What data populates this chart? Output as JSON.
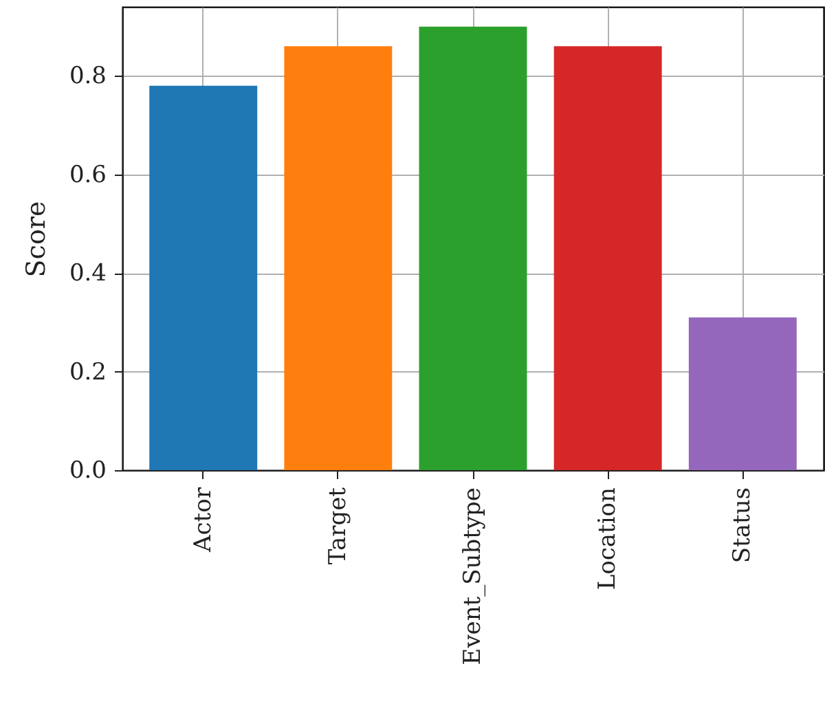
{
  "chart_data": {
    "type": "bar",
    "ylabel": "Score",
    "categories": [
      "Actor",
      "Target",
      "Event_Subtype",
      "Location",
      "Status"
    ],
    "values": [
      0.78,
      0.86,
      0.9,
      0.86,
      0.31
    ],
    "colors": [
      "#1f77b4",
      "#ff7f0e",
      "#2ca02c",
      "#d62728",
      "#9467bd"
    ],
    "ylim": [
      0,
      0.94
    ],
    "yticks": [
      {
        "value": 0,
        "label": "0.0"
      },
      0.2,
      0.4,
      0.6,
      0.8
    ],
    "grid": true
  }
}
